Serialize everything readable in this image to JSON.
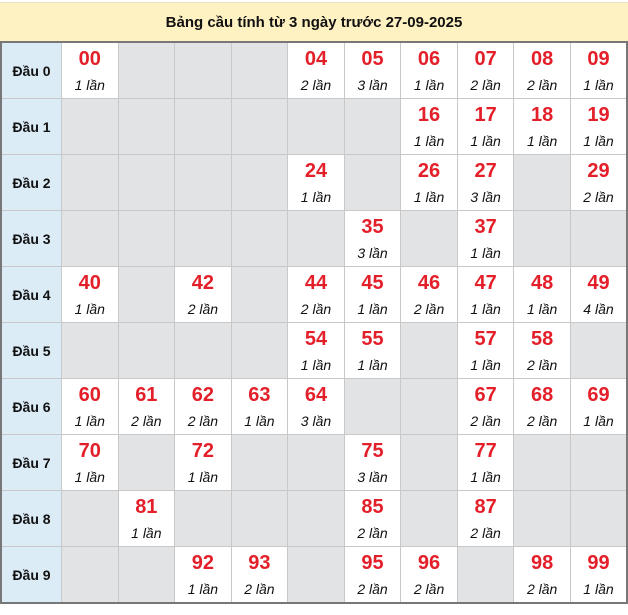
{
  "title": "Bảng cầu tính từ 3 ngày trước 27-09-2025",
  "colors": {
    "number": "#e3202a",
    "label_bg": "#dcecf6",
    "empty_bg": "#e2e3e5",
    "title_bg": "#fff2c2"
  },
  "rows": [
    {
      "label": "Đầu 0",
      "cells": [
        {
          "num": "00",
          "count": "1 lần"
        },
        null,
        null,
        null,
        {
          "num": "04",
          "count": "2 lần"
        },
        {
          "num": "05",
          "count": "3 lần"
        },
        {
          "num": "06",
          "count": "1 lần"
        },
        {
          "num": "07",
          "count": "2 lần"
        },
        {
          "num": "08",
          "count": "2 lần"
        },
        {
          "num": "09",
          "count": "1 lần"
        }
      ]
    },
    {
      "label": "Đầu 1",
      "cells": [
        null,
        null,
        null,
        null,
        null,
        null,
        {
          "num": "16",
          "count": "1 lần"
        },
        {
          "num": "17",
          "count": "1 lần"
        },
        {
          "num": "18",
          "count": "1 lần"
        },
        {
          "num": "19",
          "count": "1 lần"
        }
      ]
    },
    {
      "label": "Đầu 2",
      "cells": [
        null,
        null,
        null,
        null,
        {
          "num": "24",
          "count": "1 lần"
        },
        null,
        {
          "num": "26",
          "count": "1 lần"
        },
        {
          "num": "27",
          "count": "3 lần"
        },
        null,
        {
          "num": "29",
          "count": "2 lần"
        }
      ]
    },
    {
      "label": "Đầu 3",
      "cells": [
        null,
        null,
        null,
        null,
        null,
        {
          "num": "35",
          "count": "3 lần"
        },
        null,
        {
          "num": "37",
          "count": "1 lần"
        },
        null,
        null
      ]
    },
    {
      "label": "Đầu 4",
      "cells": [
        {
          "num": "40",
          "count": "1 lần"
        },
        null,
        {
          "num": "42",
          "count": "2 lần"
        },
        null,
        {
          "num": "44",
          "count": "2 lần"
        },
        {
          "num": "45",
          "count": "1 lần"
        },
        {
          "num": "46",
          "count": "2 lần"
        },
        {
          "num": "47",
          "count": "1 lần"
        },
        {
          "num": "48",
          "count": "1 lần"
        },
        {
          "num": "49",
          "count": "4 lần"
        }
      ]
    },
    {
      "label": "Đầu 5",
      "cells": [
        null,
        null,
        null,
        null,
        {
          "num": "54",
          "count": "1 lần"
        },
        {
          "num": "55",
          "count": "1 lần"
        },
        null,
        {
          "num": "57",
          "count": "1 lần"
        },
        {
          "num": "58",
          "count": "2 lần"
        },
        null
      ]
    },
    {
      "label": "Đầu 6",
      "cells": [
        {
          "num": "60",
          "count": "1 lần"
        },
        {
          "num": "61",
          "count": "2 lần"
        },
        {
          "num": "62",
          "count": "2 lần"
        },
        {
          "num": "63",
          "count": "1 lần"
        },
        {
          "num": "64",
          "count": "3 lần"
        },
        null,
        null,
        {
          "num": "67",
          "count": "2 lần"
        },
        {
          "num": "68",
          "count": "2 lần"
        },
        {
          "num": "69",
          "count": "1 lần"
        }
      ]
    },
    {
      "label": "Đầu 7",
      "cells": [
        {
          "num": "70",
          "count": "1 lần"
        },
        null,
        {
          "num": "72",
          "count": "1 lần"
        },
        null,
        null,
        {
          "num": "75",
          "count": "3 lần"
        },
        null,
        {
          "num": "77",
          "count": "1 lần"
        },
        null,
        null
      ]
    },
    {
      "label": "Đầu 8",
      "cells": [
        null,
        {
          "num": "81",
          "count": "1 lần"
        },
        null,
        null,
        null,
        {
          "num": "85",
          "count": "2 lần"
        },
        null,
        {
          "num": "87",
          "count": "2 lần"
        },
        null,
        null
      ]
    },
    {
      "label": "Đầu 9",
      "cells": [
        null,
        null,
        {
          "num": "92",
          "count": "1 lần"
        },
        {
          "num": "93",
          "count": "2 lần"
        },
        null,
        {
          "num": "95",
          "count": "2 lần"
        },
        {
          "num": "96",
          "count": "2 lần"
        },
        null,
        {
          "num": "98",
          "count": "2 lần"
        },
        {
          "num": "99",
          "count": "1 lần"
        }
      ]
    }
  ]
}
